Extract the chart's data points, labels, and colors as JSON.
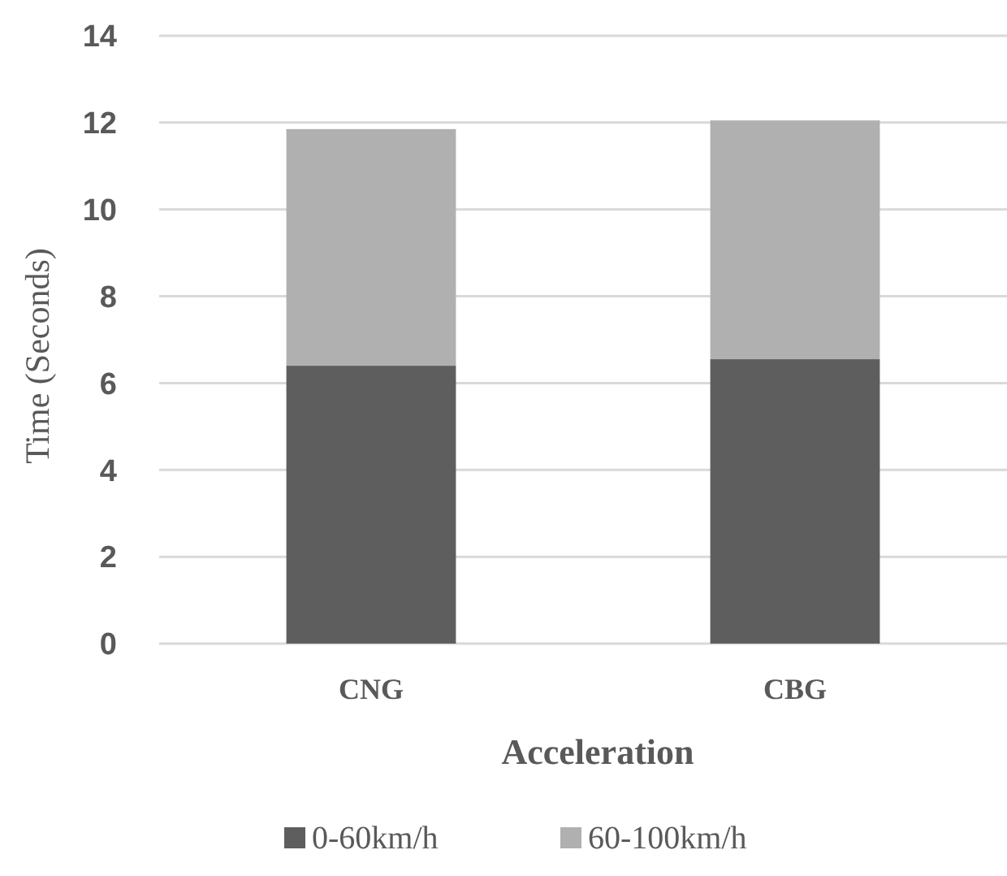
{
  "chart_data": {
    "type": "bar",
    "stacked": true,
    "xlabel": "Acceleration",
    "ylabel": "Time (Seconds)",
    "categories": [
      "CNG",
      "CBG"
    ],
    "series": [
      {
        "name": "0-60km/h",
        "color": "#5e5e5e",
        "values": [
          6.4,
          6.55
        ]
      },
      {
        "name": "60-100km/h",
        "color": "#b0b0b0",
        "values": [
          5.45,
          5.5
        ]
      }
    ],
    "ylim": [
      0,
      14
    ],
    "yticks": [
      0,
      2,
      4,
      6,
      8,
      10,
      12,
      14
    ],
    "grid": "y",
    "legend": "bottom"
  }
}
